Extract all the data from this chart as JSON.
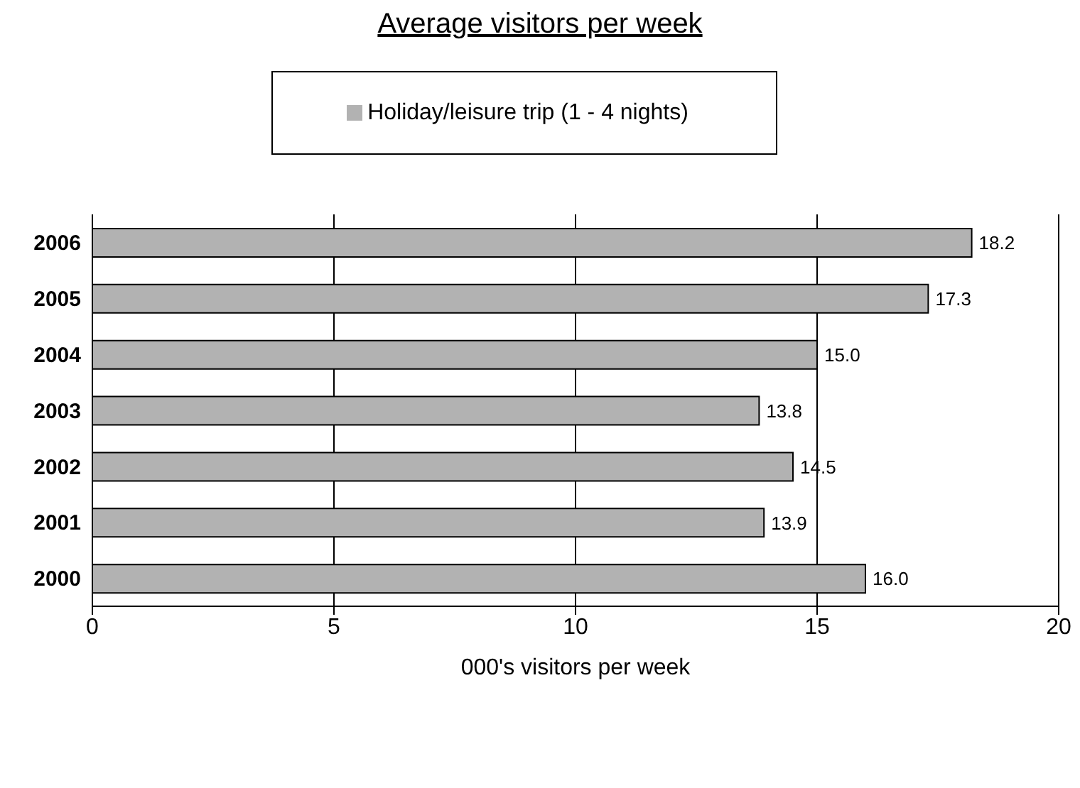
{
  "chart_data": {
    "type": "bar",
    "orientation": "horizontal",
    "title": "Average visitors per week",
    "xlabel": "000's visitors per week",
    "categories": [
      "2006",
      "2005",
      "2004",
      "2003",
      "2002",
      "2001",
      "2000"
    ],
    "series": [
      {
        "name": "Holiday/leisure trip  (1 - 4 nights)",
        "color": "#b2b2b2",
        "values": [
          18.2,
          17.3,
          15.0,
          13.8,
          14.5,
          13.9,
          16.0
        ],
        "value_labels": [
          "18.2",
          "17.3",
          "15.0",
          "13.8",
          "14.5",
          "13.9",
          "16.0"
        ]
      }
    ],
    "xlim": [
      0,
      20
    ],
    "xticks": [
      0,
      5,
      10,
      15,
      20
    ],
    "grid": "x",
    "legend": "top"
  }
}
